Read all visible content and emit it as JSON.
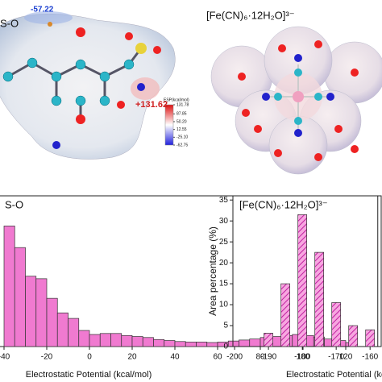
{
  "figure": {
    "left_panel": {
      "title": "S-O",
      "min_label": "-57.22",
      "max_label": "+131.62",
      "colorbar_title": "ESP(kcal/mol)",
      "colorbar_lim": [
        -62.75,
        131.78
      ],
      "colorbar_ticks": [
        {
          "value": 131.78,
          "label": "131.78"
        },
        {
          "value": 87.85,
          "label": "87.85"
        },
        {
          "value": 50.2,
          "label": "50.20"
        },
        {
          "value": 12.55,
          "label": "12.55"
        },
        {
          "value": -25.1,
          "label": "-25.10"
        },
        {
          "value": -62.75,
          "label": "-62.75"
        }
      ]
    },
    "right_panel": {
      "title": "[Fe(CN)₆·12H₂O]³⁻"
    }
  },
  "chart_data": [
    {
      "type": "histogram",
      "title": "S-O",
      "xlabel": "Electrostatic Potential (kcal/mol)",
      "color": "#f07ad0",
      "bins": [
        -40,
        -35,
        -30,
        -25,
        -20,
        -15,
        -10,
        -5,
        0,
        5,
        10,
        15,
        20,
        25,
        30,
        35,
        40,
        45,
        50,
        55,
        60,
        65,
        70,
        75,
        80,
        85,
        90,
        95,
        100,
        105,
        110,
        115,
        120,
        125
      ],
      "values": [
        24,
        19.7,
        14,
        13.5,
        9.6,
        6.7,
        5.6,
        3.2,
        2.4,
        2.6,
        2.6,
        2.2,
        2.0,
        1.8,
        1.4,
        1.2,
        1.0,
        0.9,
        0.9,
        0.8,
        0.9,
        1.1,
        1.3,
        1.5,
        1.8,
        2.0,
        2.2,
        2.4,
        2.2,
        1.9,
        1.5,
        1.2,
        0.8
      ],
      "xlim": [
        -42,
        135
      ],
      "xticks": [
        -40,
        -20,
        0,
        20,
        40,
        60,
        80,
        100,
        120
      ],
      "ylim": [
        0,
        30
      ]
    },
    {
      "type": "bar",
      "title": "[Fe(CN)₆·12H₂O]³⁻",
      "xlabel": "Electrostatic Potential (kcal/mol)",
      "ylabel": "Area percentage (%)",
      "color": "#f07ad0",
      "hatch": true,
      "x": [
        -190,
        -185,
        -180,
        -175,
        -170,
        -165,
        -160
      ],
      "values": [
        3.2,
        15,
        31.5,
        22.5,
        10.5,
        5,
        4
      ],
      "xlim": [
        -200.5,
        -156
      ],
      "xticks": [
        -200,
        -190,
        -180,
        -170,
        -160
      ],
      "ylim": [
        0,
        36
      ],
      "yticks": [
        0,
        5,
        10,
        15,
        20,
        25,
        30,
        35
      ]
    }
  ]
}
